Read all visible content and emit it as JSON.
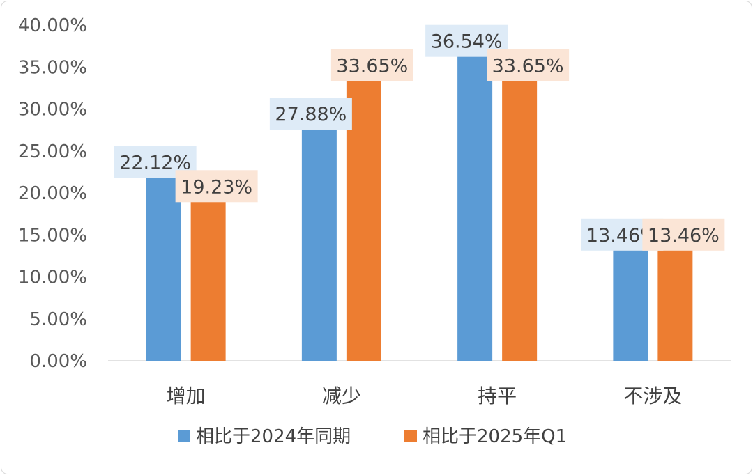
{
  "chart_data": {
    "type": "bar",
    "categories": [
      "增加",
      "减少",
      "持平",
      "不涉及"
    ],
    "series": [
      {
        "name": "相比于2024年同期",
        "values": [
          22.12,
          27.88,
          36.54,
          13.46
        ],
        "labels": [
          "22.12%",
          "27.88%",
          "36.54%",
          "13.46%"
        ],
        "color": "#5b9bd5",
        "label_bg": "#deebf7"
      },
      {
        "name": "相比于2025年Q1",
        "values": [
          19.23,
          33.65,
          33.65,
          13.46
        ],
        "labels": [
          "19.23%",
          "33.65%",
          "33.65%",
          "13.46%"
        ],
        "color": "#ed7d31",
        "label_bg": "#fbe5d6"
      }
    ],
    "yticks": [
      "0.00%",
      "5.00%",
      "10.00%",
      "15.00%",
      "20.00%",
      "25.00%",
      "30.00%",
      "35.00%",
      "40.00%"
    ],
    "ylim": [
      0,
      40
    ],
    "title": "",
    "xlabel": "",
    "ylabel": "",
    "grid": false,
    "legend_position": "bottom"
  }
}
